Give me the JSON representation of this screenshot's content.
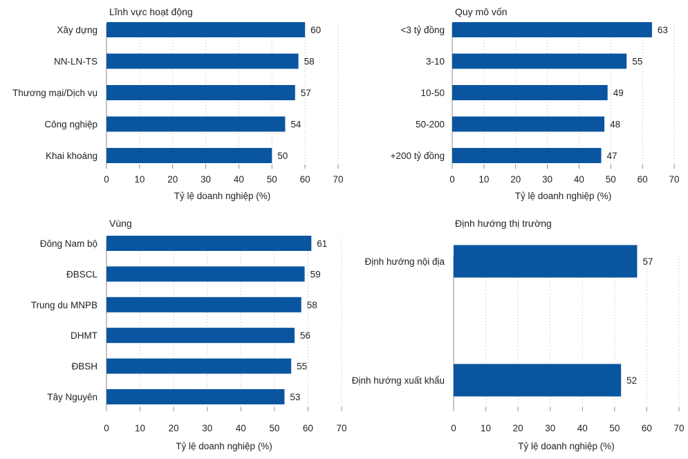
{
  "style": {
    "bar_color": "#0a55a0",
    "grid_color": "#c8c8c8",
    "axis_color": "#888888",
    "text_color": "#222222"
  },
  "chart_data": [
    {
      "type": "bar",
      "orientation": "horizontal",
      "title": "Lĩnh vực hoạt động",
      "categories": [
        "Xây dựng",
        "NN-LN-TS",
        "Thương mại/Dịch vụ",
        "Công nghiệp",
        "Khai khoáng"
      ],
      "values": [
        60,
        58,
        57,
        54,
        50
      ],
      "xlabel": "Tỷ lệ doanh nghiệp (%)",
      "xlim": [
        0,
        70
      ],
      "xticks": [
        0,
        10,
        20,
        30,
        40,
        50,
        60,
        70
      ],
      "grid": true
    },
    {
      "type": "bar",
      "orientation": "horizontal",
      "title": "Quy mô vốn",
      "categories": [
        "<3 tỷ đồng",
        "3-10",
        "10-50",
        "50-200",
        "+200 tỷ đồng"
      ],
      "values": [
        63,
        55,
        49,
        48,
        47
      ],
      "xlabel": "Tỷ lệ doanh nghiệp (%)",
      "xlim": [
        0,
        70
      ],
      "xticks": [
        0,
        10,
        20,
        30,
        40,
        50,
        60,
        70
      ],
      "grid": true
    },
    {
      "type": "bar",
      "orientation": "horizontal",
      "title": "Vùng",
      "categories": [
        "Đông Nam bộ",
        "ĐBSCL",
        "Trung du MNPB",
        "DHMT",
        "ĐBSH",
        "Tây Nguyên"
      ],
      "values": [
        61,
        59,
        58,
        56,
        55,
        53
      ],
      "xlabel": "Tỷ lệ doanh nghiệp (%)",
      "xlim": [
        0,
        70
      ],
      "xticks": [
        0,
        10,
        20,
        30,
        40,
        50,
        60,
        70
      ],
      "grid": true
    },
    {
      "type": "bar",
      "orientation": "horizontal",
      "title": "Định hướng thị trường",
      "categories": [
        "Định hướng nội địa",
        "Định hướng xuất khẩu"
      ],
      "values": [
        57,
        52
      ],
      "xlabel": "Tỷ lệ doanh nghiệp (%)",
      "xlim": [
        0,
        70
      ],
      "xticks": [
        0,
        10,
        20,
        30,
        40,
        50,
        60,
        70
      ],
      "grid": true
    }
  ]
}
